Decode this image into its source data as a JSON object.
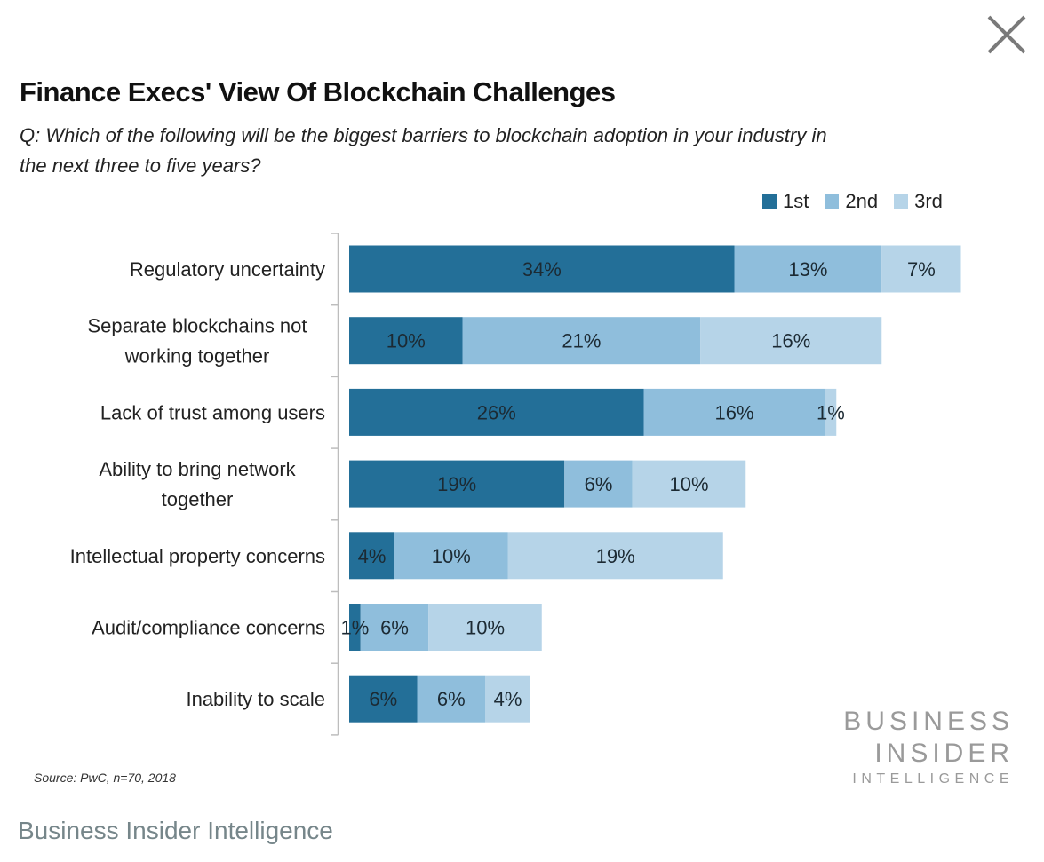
{
  "window": {
    "close_icon": "close-x-icon"
  },
  "chart_data": {
    "type": "bar",
    "orientation": "horizontal",
    "stacked": true,
    "title": "Finance Execs' View Of Blockchain Challenges",
    "subtitle": "Q: Which of the following will be the biggest barriers to blockchain adoption in your industry in the next three to five years?",
    "xlabel": "",
    "ylabel": "",
    "categories": [
      [
        "Regulatory uncertainty"
      ],
      [
        "Separate blockchains not",
        "working together"
      ],
      [
        "Lack of trust among users"
      ],
      [
        "Ability to bring network",
        "together"
      ],
      [
        "Intellectual property concerns"
      ],
      [
        "Audit/compliance concerns"
      ],
      [
        "Inability to scale"
      ]
    ],
    "series": [
      {
        "name": "1st",
        "color": "#236f98",
        "values": [
          34,
          10,
          26,
          19,
          4,
          1,
          6
        ]
      },
      {
        "name": "2nd",
        "color": "#8fbedc",
        "values": [
          13,
          21,
          16,
          6,
          10,
          6,
          6
        ]
      },
      {
        "name": "3rd",
        "color": "#b6d4e8",
        "values": [
          7,
          16,
          1,
          10,
          19,
          10,
          4
        ]
      }
    ],
    "value_suffix": "%",
    "xlim": [
      0,
      55
    ],
    "grid": false,
    "legend_position": "top-right",
    "source": "Source: PwC, n=70, 2018"
  },
  "branding": {
    "logo_line1": "BUSINESS",
    "logo_line2": "INSIDER",
    "logo_line3": "INTELLIGENCE",
    "footer_caption": "Business Insider Intelligence"
  }
}
